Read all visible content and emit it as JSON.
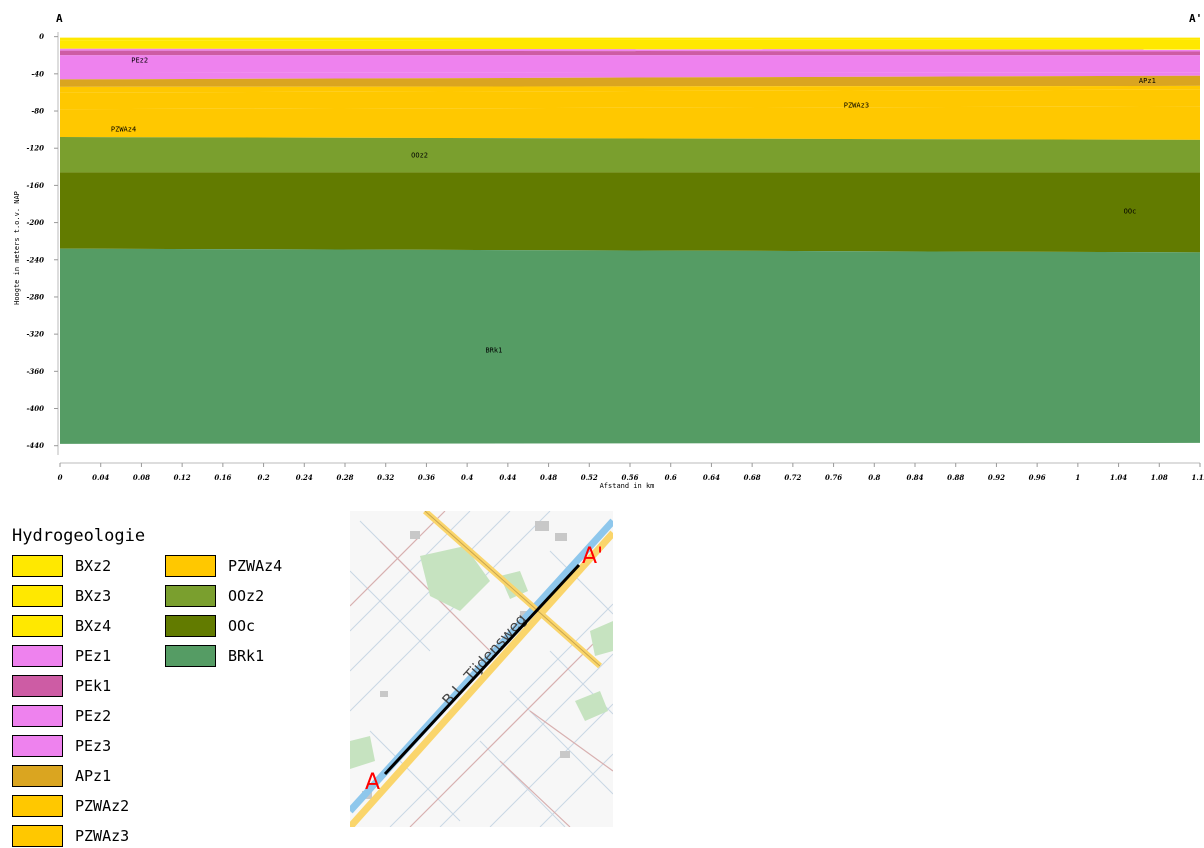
{
  "section": {
    "start_label": "A",
    "end_label": "A'",
    "ylabel": "Hoogte in meters t.o.v. NAP",
    "xlabel": "Afstand in km"
  },
  "chart_data": {
    "type": "area",
    "xlabel": "Afstand in km",
    "ylabel": "Hoogte in meters t.o.v. NAP",
    "xlim": [
      0,
      1.12
    ],
    "ylim": [
      -450,
      5
    ],
    "x_ticks": [
      "0",
      "0.04",
      "0.08",
      "0.12",
      "0.16",
      "0.2",
      "0.24",
      "0.28",
      "0.32",
      "0.36",
      "0.4",
      "0.44",
      "0.48",
      "0.52",
      "0.56",
      "0.6",
      "0.64",
      "0.68",
      "0.72",
      "0.76",
      "0.8",
      "0.84",
      "0.88",
      "0.92",
      "0.96",
      "1",
      "1.04",
      "1.08",
      "1.12"
    ],
    "y_ticks": [
      "0",
      "-40",
      "-80",
      "-120",
      "-160",
      "-200",
      "-240",
      "-280",
      "-320",
      "-360",
      "-400",
      "-440"
    ],
    "layers": [
      {
        "name": "BXz2",
        "color": "#ffe800",
        "top": [
          -1,
          -1
        ],
        "bottom": [
          -4,
          -3
        ]
      },
      {
        "name": "BXz3",
        "color": "#ffe800",
        "top": [
          -4,
          -3
        ],
        "bottom": [
          -10,
          -10
        ]
      },
      {
        "name": "BXz4",
        "color": "#ffe800",
        "top": [
          -10,
          -10
        ],
        "bottom": [
          -13,
          -14
        ]
      },
      {
        "name": "PEz1",
        "color": "#ee82ee",
        "top": [
          -13,
          -14
        ],
        "bottom": [
          -15,
          -16
        ]
      },
      {
        "name": "PEk1",
        "color": "#cd5ca4",
        "top": [
          -15,
          -16
        ],
        "bottom": [
          -20,
          -20
        ]
      },
      {
        "name": "PEz2",
        "color": "#ee82ee",
        "top": [
          -20,
          -20
        ],
        "bottom": [
          -38,
          -39
        ]
      },
      {
        "name": "PEz3",
        "color": "#ee82ee",
        "top": [
          -38,
          -39
        ],
        "bottom": [
          -46,
          -42
        ]
      },
      {
        "name": "APz1",
        "color": "#daa520",
        "top": [
          -46,
          -42
        ],
        "bottom": [
          -54,
          -53
        ]
      },
      {
        "name": "PZWAz2",
        "color": "#ffc800",
        "top": [
          -54,
          -53
        ],
        "bottom": [
          -60,
          -57
        ]
      },
      {
        "name": "PZWAz3",
        "color": "#ffc800",
        "top": [
          -60,
          -57
        ],
        "bottom": [
          -78,
          -75
        ]
      },
      {
        "name": "PZWAz4",
        "color": "#ffc800",
        "top": [
          -78,
          -75
        ],
        "bottom": [
          -108,
          -111
        ]
      },
      {
        "name": "OOz2",
        "color": "#7a9f2e",
        "top": [
          -108,
          -111
        ],
        "bottom": [
          -146,
          -146
        ]
      },
      {
        "name": "OOc",
        "color": "#627b00",
        "top": [
          -146,
          -146
        ],
        "bottom": [
          -228,
          -232
        ]
      },
      {
        "name": "BRk1",
        "color": "#559c64",
        "top": [
          -228,
          -232
        ],
        "bottom": [
          -438,
          -437
        ]
      }
    ],
    "annotations": [
      {
        "text": "PEz2",
        "x": 0.07,
        "y": -28
      },
      {
        "text": "APz1",
        "x": 1.06,
        "y": -50
      },
      {
        "text": "PZWAz3",
        "x": 0.77,
        "y": -76
      },
      {
        "text": "PZWAz4",
        "x": 0.05,
        "y": -102
      },
      {
        "text": "OOz2",
        "x": 0.345,
        "y": -130
      },
      {
        "text": "OOc",
        "x": 1.045,
        "y": -190
      },
      {
        "text": "BRk1",
        "x": 0.418,
        "y": -340
      }
    ]
  },
  "legend": {
    "title": "Hydrogeologie",
    "items": [
      {
        "label": "BXz2",
        "color": "#ffe800"
      },
      {
        "label": "BXz3",
        "color": "#ffe800"
      },
      {
        "label": "BXz4",
        "color": "#ffe800"
      },
      {
        "label": "PEz1",
        "color": "#ee82ee"
      },
      {
        "label": "PEk1",
        "color": "#cd5ca4"
      },
      {
        "label": "PEz2",
        "color": "#ee82ee"
      },
      {
        "label": "PEz3",
        "color": "#ee82ee"
      },
      {
        "label": "APz1",
        "color": "#daa520"
      },
      {
        "label": "PZWAz2",
        "color": "#ffc800"
      },
      {
        "label": "PZWAz3",
        "color": "#ffc800"
      },
      {
        "label": "PZWAz4",
        "color": "#ffc800"
      },
      {
        "label": "OOz2",
        "color": "#7a9f2e"
      },
      {
        "label": "OOc",
        "color": "#627b00"
      },
      {
        "label": "BRk1",
        "color": "#559c64"
      }
    ]
  },
  "map": {
    "street_label": "B.L. Tijdensweg",
    "point_a": "A",
    "point_b": "A'",
    "marker_color": "#ff0000"
  }
}
